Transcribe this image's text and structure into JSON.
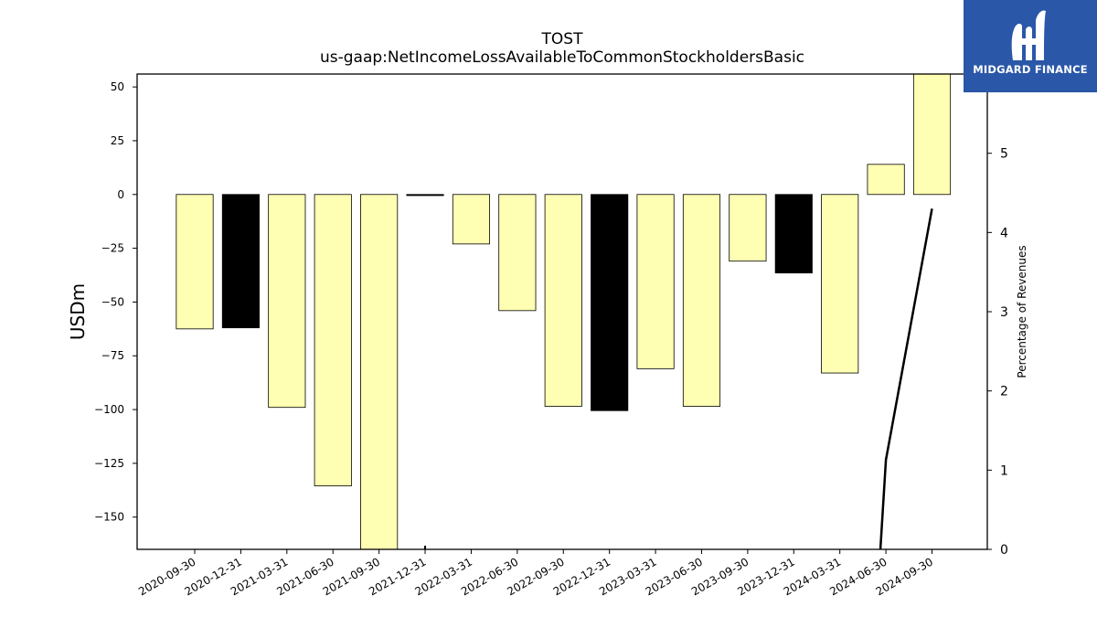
{
  "logo": {
    "text": "MIDGARD FINANCE",
    "background": "#2a57a8"
  },
  "chart_data": {
    "type": "bar",
    "title": "TOST",
    "subtitle": "us-gaap:NetIncomeLossAvailableToCommonStockholdersBasic",
    "ylabel": "USDm",
    "y2label": "Percentage of Revenues",
    "ylim": [
      -165,
      56
    ],
    "y2lim": [
      0,
      6.0
    ],
    "yticks": [
      50,
      25,
      0,
      -25,
      -50,
      -75,
      -100,
      -125,
      -150
    ],
    "y2ticks": [
      0,
      1,
      2,
      3,
      4,
      5,
      6
    ],
    "categories": [
      "2020-09-30",
      "2020-12-31",
      "2021-03-31",
      "2021-06-30",
      "2021-09-30",
      "2021-12-31",
      "2022-03-31",
      "2022-06-30",
      "2022-09-30",
      "2022-12-31",
      "2023-03-31",
      "2023-06-30",
      "2023-09-30",
      "2023-12-31",
      "2024-03-31",
      "2024-06-30",
      "2024-09-30"
    ],
    "series": [
      {
        "values": [
          -62.5,
          -62,
          -99,
          -135.5,
          -167,
          0,
          -23,
          -54,
          -98.5,
          -100.5,
          -81,
          -98.5,
          -31,
          -36.5,
          -83,
          14,
          56
        ],
        "colors": [
          "#ffffb3",
          "#000000",
          "#ffffb3",
          "#ffffb3",
          "#ffffb3",
          "#000000",
          "#ffffb3",
          "#ffffb3",
          "#ffffb3",
          "#000000",
          "#ffffb3",
          "#ffffb3",
          "#ffffb3",
          "#000000",
          "#ffffb3",
          "#ffffb3",
          "#ffffb3"
        ]
      },
      {
        "axis": "right",
        "type": "line",
        "x": [
          "2024-06-30",
          "2024-06-30",
          "2024-09-30"
        ],
        "values": [
          0.0,
          1.13,
          4.3
        ],
        "color": "#000000"
      }
    ],
    "colors": {
      "positive_fill": "#ffffb3",
      "highlight_fill": "#000000"
    }
  }
}
